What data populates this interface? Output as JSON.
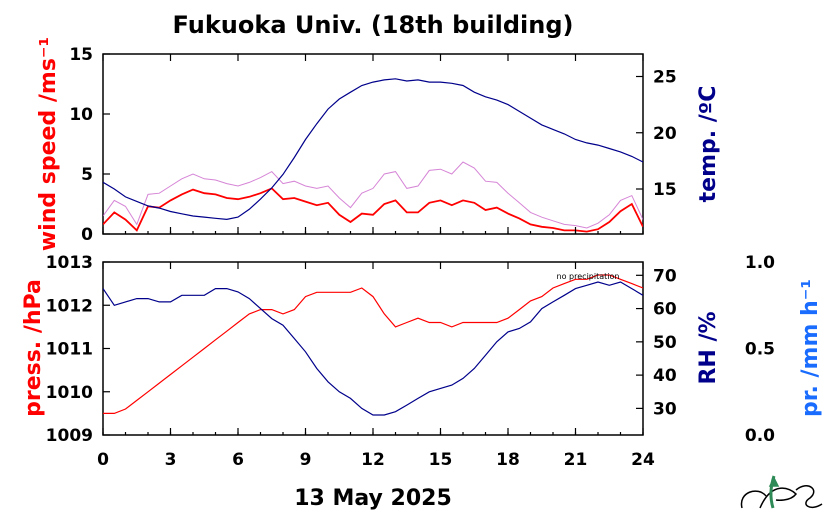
{
  "chart_data": [
    {
      "type": "line",
      "title": "Fukuoka Univ. (18th building)",
      "xlabel": "13 May 2025",
      "xlim": [
        0,
        24
      ],
      "xticks": [
        "0",
        "3",
        "6",
        "9",
        "12",
        "15",
        "18",
        "21",
        "24"
      ],
      "ylabel": "wind speed /ms⁻¹",
      "ylim": [
        0,
        15
      ],
      "yticks": [
        "0",
        "5",
        "10",
        "15"
      ],
      "y2label": "temp. /ºC",
      "y2lim": [
        11,
        27
      ],
      "y2ticks": [
        "15",
        "20",
        "25"
      ],
      "grid": false,
      "colors": {
        "wind": "#ff0000",
        "gust": "#cc66cc",
        "temp": "#00008b"
      },
      "series": [
        {
          "key": "wind",
          "axis": "left",
          "x": [
            0,
            0.5,
            1,
            1.5,
            2,
            2.5,
            3,
            3.5,
            4,
            4.5,
            5,
            5.5,
            6,
            6.5,
            7,
            7.5,
            8,
            8.5,
            9,
            9.5,
            10,
            10.5,
            11,
            11.5,
            12,
            12.5,
            13,
            13.5,
            14,
            14.5,
            15,
            15.5,
            16,
            16.5,
            17,
            17.5,
            18,
            18.5,
            19,
            19.5,
            20,
            20.5,
            21,
            21.5,
            22,
            22.5,
            23,
            23.5,
            24
          ],
          "values": [
            0.8,
            1.8,
            1.2,
            0.3,
            2.3,
            2.2,
            2.8,
            3.3,
            3.7,
            3.4,
            3.3,
            3.0,
            2.9,
            3.1,
            3.4,
            3.8,
            2.9,
            3.0,
            2.7,
            2.4,
            2.6,
            1.6,
            1.0,
            1.7,
            1.6,
            2.5,
            2.8,
            1.8,
            1.8,
            2.6,
            2.8,
            2.4,
            2.8,
            2.6,
            2.0,
            2.2,
            1.7,
            1.3,
            0.8,
            0.6,
            0.5,
            0.3,
            0.3,
            0.2,
            0.4,
            1.0,
            1.9,
            2.5,
            0.6
          ]
        },
        {
          "key": "gust",
          "axis": "left",
          "x": [
            0,
            0.5,
            1,
            1.5,
            2,
            2.5,
            3,
            3.5,
            4,
            4.5,
            5,
            5.5,
            6,
            6.5,
            7,
            7.5,
            8,
            8.5,
            9,
            9.5,
            10,
            10.5,
            11,
            11.5,
            12,
            12.5,
            13,
            13.5,
            14,
            14.5,
            15,
            15.5,
            16,
            16.5,
            17,
            17.5,
            18,
            18.5,
            19,
            19.5,
            20,
            20.5,
            21,
            21.5,
            22,
            22.5,
            23,
            23.5,
            24
          ],
          "values": [
            1.5,
            2.8,
            2.3,
            0.8,
            3.3,
            3.4,
            4.0,
            4.6,
            5.0,
            4.6,
            4.5,
            4.2,
            4.0,
            4.3,
            4.7,
            5.2,
            4.2,
            4.4,
            4.0,
            3.8,
            4.0,
            3.0,
            2.2,
            3.4,
            3.8,
            5.0,
            5.2,
            3.8,
            4.0,
            5.3,
            5.4,
            5.0,
            6.0,
            5.5,
            4.4,
            4.3,
            3.4,
            2.6,
            1.8,
            1.4,
            1.1,
            0.8,
            0.7,
            0.5,
            0.9,
            1.6,
            2.8,
            3.2,
            1.2
          ]
        },
        {
          "key": "temp",
          "axis": "right",
          "x": [
            0,
            0.5,
            1,
            1.5,
            2,
            2.5,
            3,
            3.5,
            4,
            4.5,
            5,
            5.5,
            6,
            6.5,
            7,
            7.5,
            8,
            8.5,
            9,
            9.5,
            10,
            10.5,
            11,
            11.5,
            12,
            12.5,
            13,
            13.5,
            14,
            14.5,
            15,
            15.5,
            16,
            16.5,
            17,
            17.5,
            18,
            18.5,
            19,
            19.5,
            20,
            20.5,
            21,
            21.5,
            22,
            22.5,
            23,
            23.5,
            24
          ],
          "values": [
            15.6,
            15.0,
            14.3,
            13.9,
            13.5,
            13.3,
            13.0,
            12.8,
            12.6,
            12.5,
            12.4,
            12.3,
            12.5,
            13.2,
            14.1,
            15.1,
            16.3,
            17.8,
            19.4,
            20.8,
            22.1,
            23.0,
            23.6,
            24.2,
            24.5,
            24.7,
            24.8,
            24.6,
            24.7,
            24.5,
            24.5,
            24.4,
            24.2,
            23.6,
            23.2,
            22.9,
            22.5,
            21.9,
            21.3,
            20.7,
            20.3,
            19.9,
            19.4,
            19.1,
            18.9,
            18.6,
            18.3,
            17.9,
            17.4
          ]
        }
      ]
    },
    {
      "type": "line",
      "xlabel": "13 May 2025",
      "xlim": [
        0,
        24
      ],
      "xticks": [
        "0",
        "3",
        "6",
        "9",
        "12",
        "15",
        "18",
        "21",
        "24"
      ],
      "ylabel": "press. /hPa",
      "ylim": [
        1009,
        1013
      ],
      "yticks": [
        "1009",
        "1010",
        "1011",
        "1012",
        "1013"
      ],
      "y2label": "RH /%",
      "y2lim": [
        22,
        74
      ],
      "y2ticks": [
        "30",
        "40",
        "50",
        "60",
        "70"
      ],
      "y3label": "pr. /mm h⁻¹",
      "y3lim": [
        0.0,
        1.0
      ],
      "y3ticks": [
        "0.0",
        "0.5",
        "1.0"
      ],
      "annotation": "no precipitation",
      "grid": false,
      "colors": {
        "press": "#ff0000",
        "rh": "#00008b",
        "precip_label": "#1a6cff"
      },
      "series": [
        {
          "key": "press",
          "axis": "left",
          "x": [
            0,
            0.5,
            1,
            1.5,
            2,
            2.5,
            3,
            3.5,
            4,
            4.5,
            5,
            5.5,
            6,
            6.5,
            7,
            7.5,
            8,
            8.5,
            9,
            9.5,
            10,
            10.5,
            11,
            11.5,
            12,
            12.5,
            13,
            13.5,
            14,
            14.5,
            15,
            15.5,
            16,
            16.5,
            17,
            17.5,
            18,
            18.5,
            19,
            19.5,
            20,
            20.5,
            21,
            21.5,
            22,
            22.5,
            23,
            23.5,
            24
          ],
          "values": [
            1009.5,
            1009.5,
            1009.6,
            1009.8,
            1010.0,
            1010.2,
            1010.4,
            1010.6,
            1010.8,
            1011.0,
            1011.2,
            1011.4,
            1011.6,
            1011.8,
            1011.9,
            1011.9,
            1011.8,
            1011.9,
            1012.2,
            1012.3,
            1012.3,
            1012.3,
            1012.3,
            1012.4,
            1012.2,
            1011.8,
            1011.5,
            1011.6,
            1011.7,
            1011.6,
            1011.6,
            1011.5,
            1011.6,
            1011.6,
            1011.6,
            1011.6,
            1011.7,
            1011.9,
            1012.1,
            1012.2,
            1012.4,
            1012.5,
            1012.6,
            1012.6,
            1012.7,
            1012.7,
            1012.6,
            1012.5,
            1012.4
          ]
        },
        {
          "key": "rh",
          "axis": "right",
          "x": [
            0,
            0.5,
            1,
            1.5,
            2,
            2.5,
            3,
            3.5,
            4,
            4.5,
            5,
            5.5,
            6,
            6.5,
            7,
            7.5,
            8,
            8.5,
            9,
            9.5,
            10,
            10.5,
            11,
            11.5,
            12,
            12.5,
            13,
            13.5,
            14,
            14.5,
            15,
            15.5,
            16,
            16.5,
            17,
            17.5,
            18,
            18.5,
            19,
            19.5,
            20,
            20.5,
            21,
            21.5,
            22,
            22.5,
            23,
            23.5,
            24
          ],
          "values": [
            66,
            61,
            62,
            63,
            63,
            62,
            62,
            64,
            64,
            64,
            66,
            66,
            65,
            63,
            60,
            57,
            55,
            51,
            47,
            42,
            38,
            35,
            33,
            30,
            28,
            28,
            29,
            31,
            33,
            35,
            36,
            37,
            39,
            42,
            46,
            50,
            53,
            54,
            56,
            60,
            62,
            64,
            66,
            67,
            68,
            67,
            68,
            66,
            64
          ]
        }
      ]
    }
  ]
}
